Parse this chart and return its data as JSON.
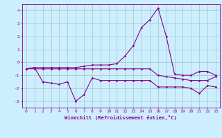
{
  "xlabel": "Windchill (Refroidissement éolien,°C)",
  "background_color": "#cceeff",
  "grid_color": "#aacccc",
  "line_color": "#880088",
  "hours": [
    0,
    1,
    2,
    3,
    4,
    5,
    6,
    7,
    8,
    9,
    10,
    11,
    12,
    13,
    14,
    15,
    16,
    17,
    18,
    19,
    20,
    21,
    22,
    23
  ],
  "series1": [
    -0.5,
    -0.4,
    -1.5,
    -1.6,
    -1.7,
    -1.5,
    -3.0,
    -2.5,
    -1.2,
    -1.4,
    -1.4,
    -1.4,
    -1.4,
    -1.4,
    -1.4,
    -1.4,
    -1.9,
    -1.9,
    -1.9,
    -1.9,
    -2.0,
    -2.4,
    -1.8,
    -1.9
  ],
  "series2": [
    -0.5,
    -0.4,
    -0.4,
    -0.4,
    -0.4,
    -0.4,
    -0.4,
    -0.3,
    -0.2,
    -0.2,
    -0.2,
    -0.1,
    0.5,
    1.3,
    2.7,
    3.3,
    4.2,
    2.0,
    -0.9,
    -1.0,
    -1.0,
    -0.7,
    -0.7,
    -1.0
  ],
  "series3": [
    -0.5,
    -0.5,
    -0.5,
    -0.5,
    -0.5,
    -0.5,
    -0.5,
    -0.5,
    -0.5,
    -0.5,
    -0.5,
    -0.5,
    -0.5,
    -0.5,
    -0.5,
    -0.5,
    -1.0,
    -1.1,
    -1.2,
    -1.3,
    -1.4,
    -1.4,
    -1.4,
    -1.1
  ],
  "ylim": [
    -3.5,
    4.5
  ],
  "yticks": [
    -3,
    -2,
    -1,
    0,
    1,
    2,
    3,
    4
  ]
}
